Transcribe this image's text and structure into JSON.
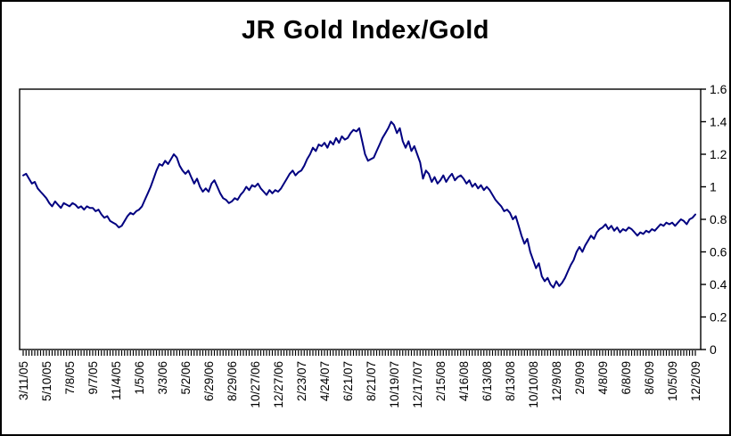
{
  "chart_data": {
    "type": "line",
    "title": "JR Gold Index/Gold",
    "grid": false,
    "legend": "none",
    "line_color": "#000080",
    "axis_color": "#000000",
    "ylim": [
      0,
      1.6
    ],
    "y_ticks": [
      0,
      0.2,
      0.4,
      0.6,
      0.8,
      1.0,
      1.2,
      1.4,
      1.6
    ],
    "y_tick_labels": [
      "0",
      "0.2",
      "0.4",
      "0.6",
      "0.8",
      "1",
      "1.2",
      "1.4",
      "1.6"
    ],
    "points_per_tick": 8,
    "x_tick_labels": [
      "3/11/05",
      "5/10/05",
      "7/8/05",
      "9/7/05",
      "11/4/05",
      "1/5/06",
      "3/3/06",
      "5/2/06",
      "6/29/06",
      "8/29/06",
      "10/27/06",
      "12/27/06",
      "2/23/07",
      "4/24/07",
      "6/21/07",
      "8/21/07",
      "10/19/07",
      "12/17/07",
      "2/15/08",
      "4/16/08",
      "6/13/08",
      "8/13/08",
      "10/10/08",
      "12/9/08",
      "2/9/09",
      "4/8/09",
      "6/8/09",
      "8/6/09",
      "10/5/09",
      "12/2/09"
    ],
    "values": [
      1.07,
      1.08,
      1.05,
      1.02,
      1.03,
      0.99,
      0.97,
      0.95,
      0.93,
      0.9,
      0.88,
      0.91,
      0.89,
      0.87,
      0.9,
      0.89,
      0.88,
      0.9,
      0.89,
      0.87,
      0.88,
      0.86,
      0.88,
      0.87,
      0.87,
      0.85,
      0.86,
      0.83,
      0.81,
      0.82,
      0.79,
      0.78,
      0.77,
      0.75,
      0.76,
      0.79,
      0.82,
      0.84,
      0.83,
      0.85,
      0.86,
      0.88,
      0.92,
      0.96,
      1.0,
      1.05,
      1.1,
      1.14,
      1.13,
      1.16,
      1.14,
      1.17,
      1.2,
      1.18,
      1.13,
      1.1,
      1.08,
      1.1,
      1.06,
      1.02,
      1.05,
      1.0,
      0.97,
      0.99,
      0.97,
      1.02,
      1.04,
      1.0,
      0.96,
      0.93,
      0.92,
      0.9,
      0.91,
      0.93,
      0.92,
      0.95,
      0.97,
      1.0,
      0.98,
      1.01,
      1.0,
      1.02,
      0.99,
      0.97,
      0.95,
      0.98,
      0.96,
      0.98,
      0.97,
      0.99,
      1.02,
      1.05,
      1.08,
      1.1,
      1.07,
      1.09,
      1.1,
      1.13,
      1.17,
      1.2,
      1.24,
      1.22,
      1.26,
      1.25,
      1.27,
      1.24,
      1.28,
      1.26,
      1.3,
      1.27,
      1.31,
      1.29,
      1.3,
      1.33,
      1.35,
      1.34,
      1.36,
      1.28,
      1.2,
      1.16,
      1.17,
      1.18,
      1.22,
      1.26,
      1.3,
      1.33,
      1.36,
      1.4,
      1.38,
      1.33,
      1.36,
      1.28,
      1.24,
      1.28,
      1.22,
      1.25,
      1.2,
      1.15,
      1.05,
      1.1,
      1.08,
      1.03,
      1.06,
      1.02,
      1.04,
      1.07,
      1.03,
      1.06,
      1.08,
      1.04,
      1.06,
      1.07,
      1.05,
      1.02,
      1.04,
      1.0,
      1.02,
      0.99,
      1.01,
      0.98,
      1.0,
      0.98,
      0.95,
      0.92,
      0.9,
      0.88,
      0.85,
      0.86,
      0.84,
      0.8,
      0.82,
      0.76,
      0.7,
      0.65,
      0.68,
      0.6,
      0.55,
      0.5,
      0.53,
      0.45,
      0.42,
      0.44,
      0.4,
      0.38,
      0.42,
      0.39,
      0.41,
      0.44,
      0.48,
      0.52,
      0.55,
      0.6,
      0.63,
      0.6,
      0.64,
      0.67,
      0.7,
      0.68,
      0.72,
      0.74,
      0.75,
      0.77,
      0.74,
      0.76,
      0.73,
      0.75,
      0.72,
      0.74,
      0.73,
      0.75,
      0.74,
      0.72,
      0.7,
      0.72,
      0.71,
      0.73,
      0.72,
      0.74,
      0.73,
      0.75,
      0.77,
      0.76,
      0.78,
      0.77,
      0.78,
      0.76,
      0.78,
      0.8,
      0.79,
      0.77,
      0.8,
      0.81,
      0.83
    ]
  }
}
